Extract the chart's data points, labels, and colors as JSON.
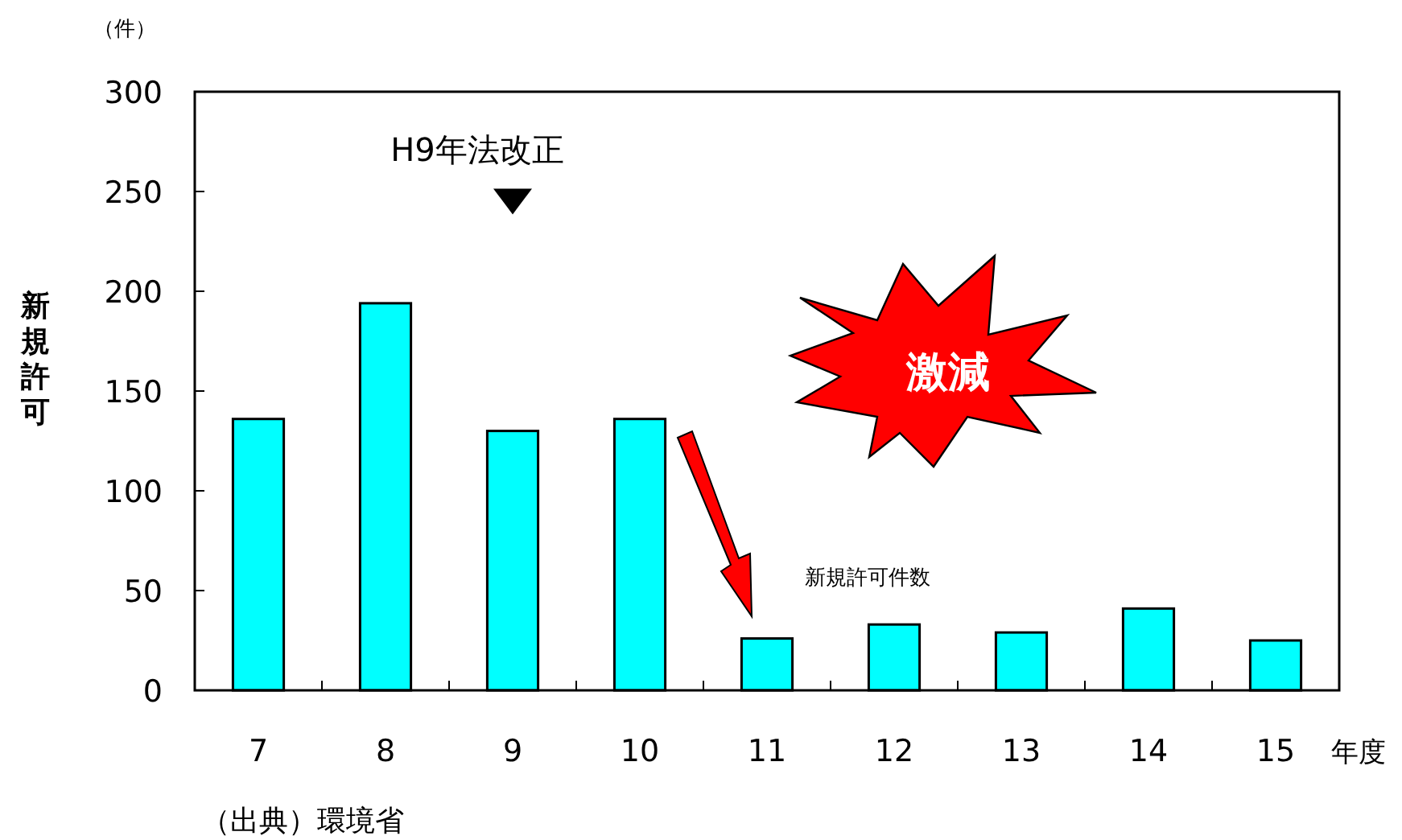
{
  "chart_data": {
    "type": "bar",
    "categories": [
      "7",
      "8",
      "9",
      "10",
      "11",
      "12",
      "13",
      "14",
      "15"
    ],
    "values": [
      136,
      194,
      130,
      136,
      26,
      33,
      29,
      41,
      25
    ],
    "color": "#00ffff",
    "ylim": [
      0,
      300
    ],
    "yticks": [
      0,
      50,
      100,
      150,
      200,
      250,
      300
    ],
    "ylabel": "新規許可",
    "xlabel": "年度",
    "annotations": [
      "（件）",
      {
        "text": "H9年法改正",
        "x": "9",
        "y": 245
      },
      "激減",
      "新規許可件数",
      "（出典）環境省"
    ]
  }
}
